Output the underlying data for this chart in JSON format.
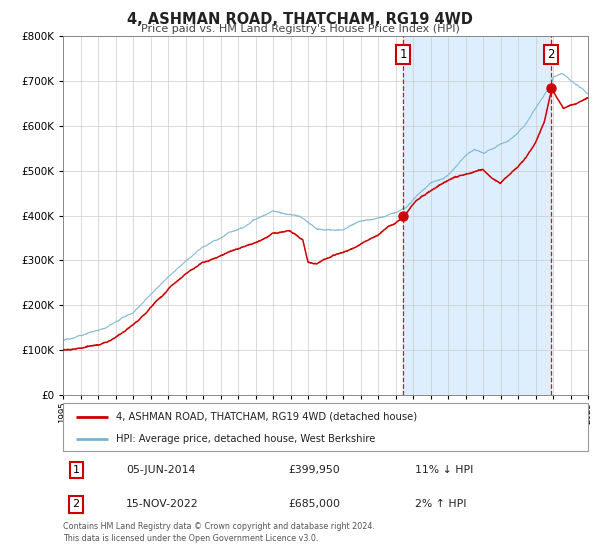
{
  "title": "4, ASHMAN ROAD, THATCHAM, RG19 4WD",
  "subtitle": "Price paid vs. HM Land Registry's House Price Index (HPI)",
  "legend_line1": "4, ASHMAN ROAD, THATCHAM, RG19 4WD (detached house)",
  "legend_line2": "HPI: Average price, detached house, West Berkshire",
  "annotation1": {
    "label": "1",
    "date": "05-JUN-2014",
    "price": "£399,950",
    "hpi": "11% ↓ HPI"
  },
  "annotation2": {
    "label": "2",
    "date": "15-NOV-2022",
    "price": "£685,000",
    "hpi": "2% ↑ HPI"
  },
  "sale1_year": 2014.44,
  "sale1_value": 399950,
  "sale2_year": 2022.88,
  "sale2_value": 685000,
  "hpi_color": "#7ab3d4",
  "price_color": "#cc0000",
  "sale_dot_color": "#cc0000",
  "vline_color": "#cc0000",
  "shade_color": "#ddeeff",
  "background_color": "#ffffff",
  "plot_bg_color": "#ffffff",
  "grid_color": "#cccccc",
  "ylim": [
    0,
    800000
  ],
  "xlim_start": 1995,
  "xlim_end": 2025,
  "footnote": "Contains HM Land Registry data © Crown copyright and database right 2024.\nThis data is licensed under the Open Government Licence v3.0."
}
